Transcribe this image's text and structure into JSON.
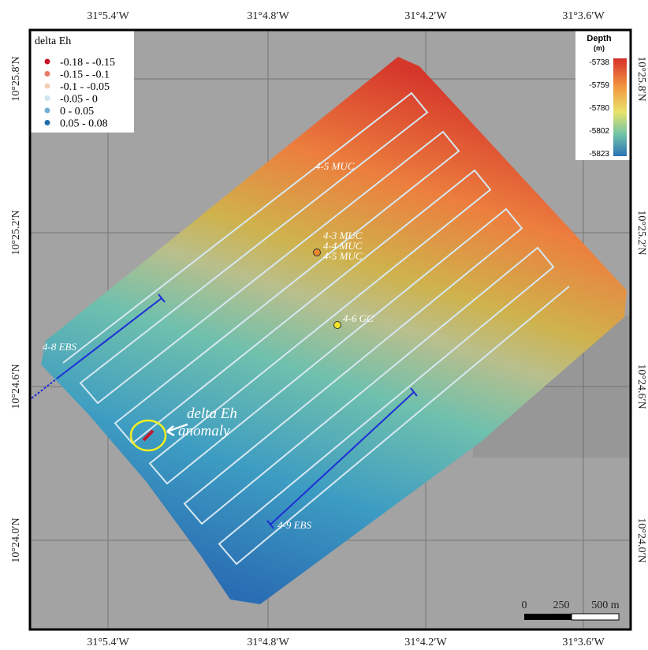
{
  "axes": {
    "top": [
      "31°5.4′W",
      "31°4.8′W",
      "31°4.2′W",
      "31°3.6′W"
    ],
    "bottom": [
      "31°5.4′W",
      "31°4.8′W",
      "31°4.2′W",
      "31°3.6′W"
    ],
    "left": [
      "10°25.8′N",
      "10°25.2′N",
      "10°24.6′N",
      "10°24.0′N"
    ],
    "right": [
      "10°25.8′N",
      "10°25.2′N",
      "10°24.6′N",
      "10°24.0′N"
    ]
  },
  "legend": {
    "title": "delta Eh",
    "items": [
      {
        "label": "-0.18 - -0.15",
        "color": "#c3172b"
      },
      {
        "label": "-0.15 - -0.1",
        "color": "#e87a66"
      },
      {
        "label": "-0.1 - -0.05",
        "color": "#f3cdb6"
      },
      {
        "label": "-0.05 - 0",
        "color": "#cfe3ef"
      },
      {
        "label": "0 - 0.05",
        "color": "#72aed6"
      },
      {
        "label": "0.05 - 0.08",
        "color": "#1f6eab"
      }
    ]
  },
  "depth_scale": {
    "title": "Depth",
    "unit": "(m)",
    "ticks": [
      -5738,
      -5759,
      -5780,
      -5802,
      -5823
    ]
  },
  "annotations": {
    "muc_top": "4-5 MUC",
    "muc_group": [
      "4-3 MUC",
      "4-4 MUC",
      "4-5 MUC"
    ],
    "gc": "4-6 GC",
    "ebs_left": "4-8 EBS",
    "ebs_right": "4-9 EBS",
    "anomaly": [
      "delta Eh",
      "anomaly"
    ]
  },
  "scale_bar": [
    "0",
    "250",
    "500 m"
  ]
}
